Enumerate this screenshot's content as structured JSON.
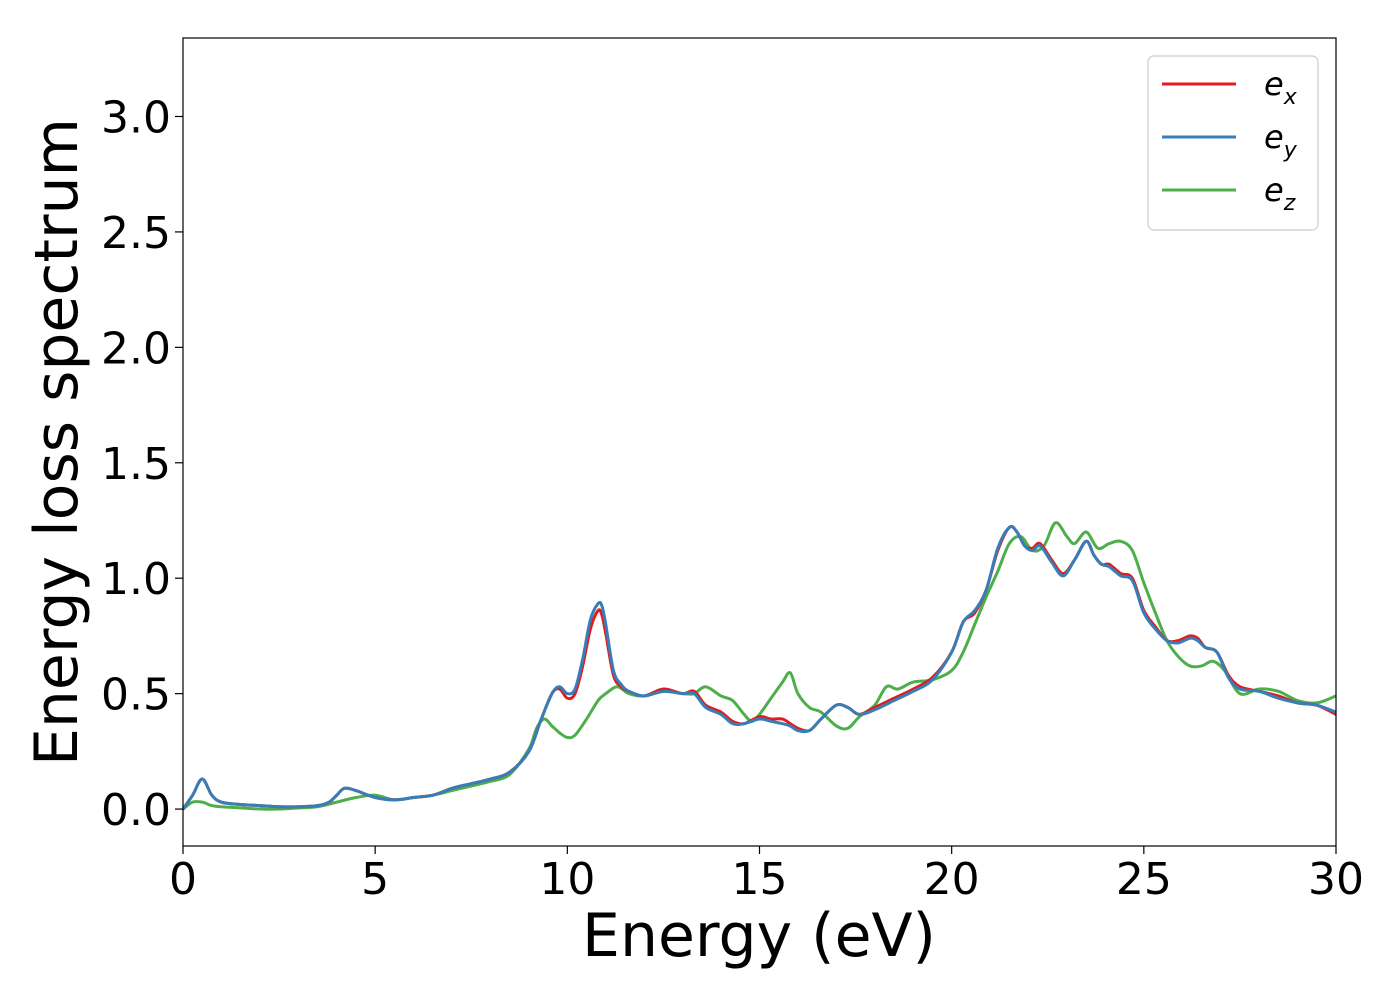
{
  "chart_data": {
    "type": "line",
    "title": "",
    "xlabel": "Energy (eV)",
    "ylabel": "Energy loss spectrum",
    "xlim": [
      0,
      30
    ],
    "ylim": [
      -0.16,
      3.34
    ],
    "xticks": [
      0,
      5,
      10,
      15,
      20,
      25,
      30
    ],
    "xtick_labels": [
      "0",
      "5",
      "10",
      "15",
      "20",
      "25",
      "30"
    ],
    "yticks": [
      0.0,
      0.5,
      1.0,
      1.5,
      2.0,
      2.5,
      3.0
    ],
    "ytick_labels": [
      "0.0",
      "0.5",
      "1.0",
      "1.5",
      "2.0",
      "2.5",
      "3.0"
    ],
    "grid": false,
    "legend_position": "top-right",
    "series": [
      {
        "name": "e_x",
        "label_base": "e",
        "label_sub": "x",
        "color": "#e41a1c",
        "x": [
          0,
          0.25,
          0.5,
          0.75,
          1,
          1.5,
          2,
          2.5,
          3,
          3.5,
          3.8,
          4,
          4.2,
          4.5,
          5,
          5.5,
          6,
          6.5,
          7,
          7.5,
          8,
          8.5,
          9,
          9.3,
          9.6,
          9.8,
          10,
          10.2,
          10.4,
          10.6,
          10.8,
          10.9,
          11,
          11.2,
          11.4,
          11.6,
          12,
          12.5,
          13,
          13.3,
          13.6,
          14,
          14.3,
          14.6,
          15,
          15.3,
          15.6,
          15.8,
          16,
          16.3,
          16.6,
          17,
          17.3,
          17.6,
          18,
          18.5,
          19,
          19.5,
          20,
          20.3,
          20.6,
          20.9,
          21.2,
          21.5,
          21.7,
          21.9,
          22.1,
          22.3,
          22.6,
          22.9,
          23.2,
          23.5,
          23.7,
          23.9,
          24.1,
          24.4,
          24.7,
          25,
          25.3,
          25.6,
          25.9,
          26.2,
          26.4,
          26.6,
          26.9,
          27.2,
          27.5,
          28,
          28.5,
          29,
          29.5,
          30
        ],
        "y": [
          0.0,
          0.06,
          0.13,
          0.06,
          0.03,
          0.02,
          0.015,
          0.01,
          0.01,
          0.015,
          0.03,
          0.06,
          0.09,
          0.08,
          0.05,
          0.04,
          0.05,
          0.06,
          0.09,
          0.11,
          0.13,
          0.16,
          0.25,
          0.38,
          0.5,
          0.52,
          0.48,
          0.5,
          0.62,
          0.78,
          0.86,
          0.84,
          0.76,
          0.58,
          0.53,
          0.51,
          0.49,
          0.52,
          0.5,
          0.51,
          0.45,
          0.42,
          0.38,
          0.37,
          0.4,
          0.39,
          0.39,
          0.37,
          0.35,
          0.34,
          0.39,
          0.45,
          0.44,
          0.41,
          0.44,
          0.48,
          0.52,
          0.57,
          0.68,
          0.81,
          0.85,
          0.95,
          1.12,
          1.22,
          1.2,
          1.14,
          1.13,
          1.15,
          1.08,
          1.02,
          1.08,
          1.16,
          1.1,
          1.06,
          1.06,
          1.02,
          1.0,
          0.86,
          0.79,
          0.73,
          0.73,
          0.75,
          0.74,
          0.7,
          0.68,
          0.58,
          0.53,
          0.51,
          0.49,
          0.46,
          0.45,
          0.41
        ]
      },
      {
        "name": "e_y",
        "label_base": "e",
        "label_sub": "y",
        "color": "#377eb8",
        "x": [
          0,
          0.25,
          0.5,
          0.75,
          1,
          1.5,
          2,
          2.5,
          3,
          3.5,
          3.8,
          4,
          4.2,
          4.5,
          5,
          5.5,
          6,
          6.5,
          7,
          7.5,
          8,
          8.5,
          9,
          9.3,
          9.6,
          9.8,
          10,
          10.2,
          10.4,
          10.6,
          10.8,
          10.9,
          11,
          11.2,
          11.4,
          11.6,
          12,
          12.5,
          13,
          13.3,
          13.6,
          14,
          14.3,
          14.6,
          15,
          15.3,
          15.6,
          15.8,
          16,
          16.3,
          16.6,
          17,
          17.3,
          17.6,
          18,
          18.5,
          19,
          19.5,
          20,
          20.3,
          20.6,
          20.9,
          21.2,
          21.5,
          21.7,
          21.9,
          22.1,
          22.3,
          22.6,
          22.9,
          23.2,
          23.5,
          23.7,
          23.9,
          24.1,
          24.4,
          24.7,
          25,
          25.3,
          25.6,
          25.9,
          26.2,
          26.4,
          26.6,
          26.9,
          27.2,
          27.5,
          28,
          28.5,
          29,
          29.5,
          30
        ],
        "y": [
          0.0,
          0.06,
          0.13,
          0.06,
          0.03,
          0.02,
          0.015,
          0.01,
          0.01,
          0.015,
          0.03,
          0.06,
          0.09,
          0.08,
          0.05,
          0.04,
          0.05,
          0.06,
          0.09,
          0.11,
          0.13,
          0.16,
          0.25,
          0.38,
          0.5,
          0.53,
          0.5,
          0.52,
          0.65,
          0.82,
          0.89,
          0.88,
          0.8,
          0.6,
          0.54,
          0.51,
          0.49,
          0.51,
          0.5,
          0.5,
          0.44,
          0.41,
          0.37,
          0.37,
          0.39,
          0.38,
          0.37,
          0.36,
          0.34,
          0.34,
          0.39,
          0.45,
          0.44,
          0.41,
          0.43,
          0.47,
          0.51,
          0.56,
          0.68,
          0.81,
          0.86,
          0.95,
          1.13,
          1.22,
          1.2,
          1.14,
          1.12,
          1.14,
          1.07,
          1.01,
          1.08,
          1.16,
          1.1,
          1.06,
          1.05,
          1.01,
          0.99,
          0.85,
          0.78,
          0.73,
          0.72,
          0.74,
          0.73,
          0.7,
          0.68,
          0.57,
          0.52,
          0.51,
          0.48,
          0.46,
          0.45,
          0.42
        ]
      },
      {
        "name": "e_z",
        "label_base": "e",
        "label_sub": "z",
        "color": "#4daf4a",
        "x": [
          0,
          0.25,
          0.5,
          0.75,
          1,
          1.5,
          2,
          2.5,
          3,
          3.5,
          4,
          4.5,
          5,
          5.5,
          6,
          6.5,
          7,
          7.5,
          8,
          8.5,
          9,
          9.2,
          9.4,
          9.6,
          9.8,
          10,
          10.2,
          10.5,
          10.8,
          11,
          11.3,
          11.6,
          12,
          12.5,
          13,
          13.3,
          13.6,
          14,
          14.3,
          14.6,
          14.8,
          15,
          15.3,
          15.6,
          15.8,
          16,
          16.3,
          16.6,
          17,
          17.3,
          17.6,
          18,
          18.3,
          18.6,
          19,
          19.5,
          20,
          20.3,
          20.6,
          20.9,
          21.2,
          21.5,
          21.8,
          22.1,
          22.4,
          22.7,
          23,
          23.2,
          23.5,
          23.8,
          24.1,
          24.4,
          24.7,
          25,
          25.3,
          25.6,
          25.9,
          26.2,
          26.5,
          26.8,
          27.1,
          27.5,
          28,
          28.5,
          29,
          29.5,
          30
        ],
        "y": [
          0.0,
          0.03,
          0.03,
          0.015,
          0.01,
          0.005,
          0.0,
          0.0,
          0.005,
          0.01,
          0.03,
          0.05,
          0.06,
          0.04,
          0.05,
          0.06,
          0.08,
          0.1,
          0.12,
          0.15,
          0.26,
          0.35,
          0.39,
          0.36,
          0.33,
          0.31,
          0.32,
          0.39,
          0.47,
          0.5,
          0.53,
          0.5,
          0.49,
          0.51,
          0.5,
          0.5,
          0.53,
          0.49,
          0.47,
          0.41,
          0.38,
          0.41,
          0.48,
          0.55,
          0.59,
          0.5,
          0.44,
          0.42,
          0.36,
          0.35,
          0.4,
          0.45,
          0.53,
          0.52,
          0.55,
          0.56,
          0.6,
          0.68,
          0.8,
          0.92,
          1.03,
          1.15,
          1.18,
          1.12,
          1.14,
          1.24,
          1.18,
          1.15,
          1.2,
          1.13,
          1.15,
          1.16,
          1.12,
          0.98,
          0.85,
          0.73,
          0.66,
          0.62,
          0.62,
          0.64,
          0.6,
          0.5,
          0.52,
          0.51,
          0.47,
          0.46,
          0.49
        ]
      }
    ]
  }
}
